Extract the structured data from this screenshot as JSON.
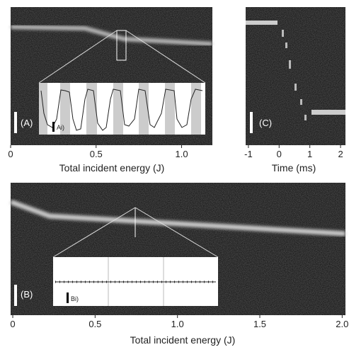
{
  "chart_data": [
    {
      "type": "kymograph",
      "panel": "(A)",
      "inset_label": "Ai)",
      "xlabel": "Total incident energy (J)",
      "xlim": [
        0,
        1.18
      ],
      "xticks": [
        0,
        0.5,
        {
          "value": 1,
          "label": "1.0"
        }
      ]
    },
    {
      "type": "kymograph",
      "panel": "(C)",
      "xlabel": "Time (ms)",
      "xlim": [
        -1.09,
        2.16
      ],
      "xticks": [
        -1,
        0,
        1,
        2
      ]
    },
    {
      "type": "kymograph",
      "panel": "(B)",
      "inset_label": "Bi)",
      "xlabel": "Total incident energy (J)",
      "xlim": [
        -0.013,
        2.02
      ],
      "xticks": [
        0,
        0.5,
        {
          "value": 1,
          "label": "1.0"
        },
        1.5,
        {
          "value": 2,
          "label": "2.0"
        }
      ]
    }
  ]
}
